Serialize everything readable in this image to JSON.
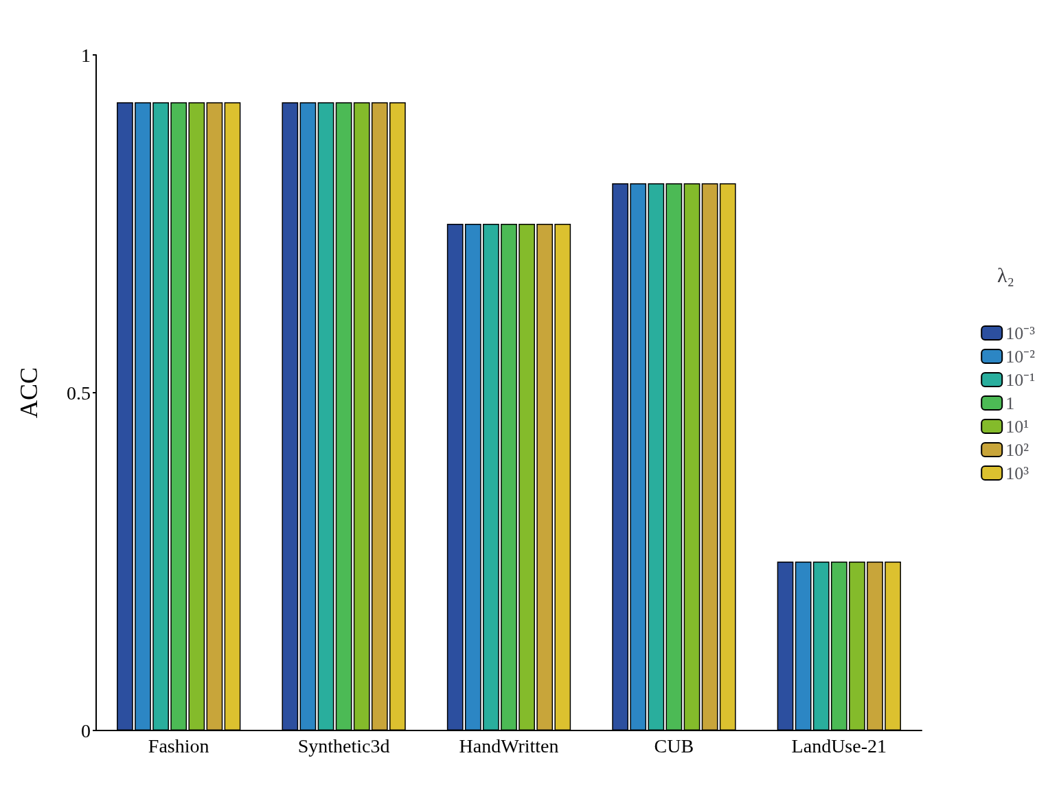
{
  "chart_data": {
    "type": "bar",
    "ylabel": "ACC",
    "legend_title": "λ₂",
    "categories": [
      "Fashion",
      "Synthetic3d",
      "HandWritten",
      "CUB",
      "LandUse-21"
    ],
    "series": [
      {
        "name": "10⁻³",
        "color": "#2c4f9f",
        "values": [
          0.93,
          0.93,
          0.75,
          0.81,
          0.25
        ]
      },
      {
        "name": "10⁻²",
        "color": "#2c86c4",
        "values": [
          0.93,
          0.93,
          0.75,
          0.81,
          0.25
        ]
      },
      {
        "name": "10⁻¹",
        "color": "#29ae9d",
        "values": [
          0.93,
          0.93,
          0.75,
          0.81,
          0.25
        ]
      },
      {
        "name": "1",
        "color": "#4cba55",
        "values": [
          0.93,
          0.93,
          0.75,
          0.81,
          0.25
        ]
      },
      {
        "name": "10¹",
        "color": "#84bb2b",
        "values": [
          0.93,
          0.93,
          0.75,
          0.81,
          0.25
        ]
      },
      {
        "name": "10²",
        "color": "#c8a53a",
        "values": [
          0.93,
          0.93,
          0.75,
          0.81,
          0.25
        ]
      },
      {
        "name": "10³",
        "color": "#dcc12f",
        "values": [
          0.93,
          0.93,
          0.75,
          0.81,
          0.25
        ]
      }
    ],
    "ylim": [
      0,
      1
    ],
    "yticks": [
      0,
      0.5,
      1
    ],
    "grid": false,
    "legend": "right"
  }
}
